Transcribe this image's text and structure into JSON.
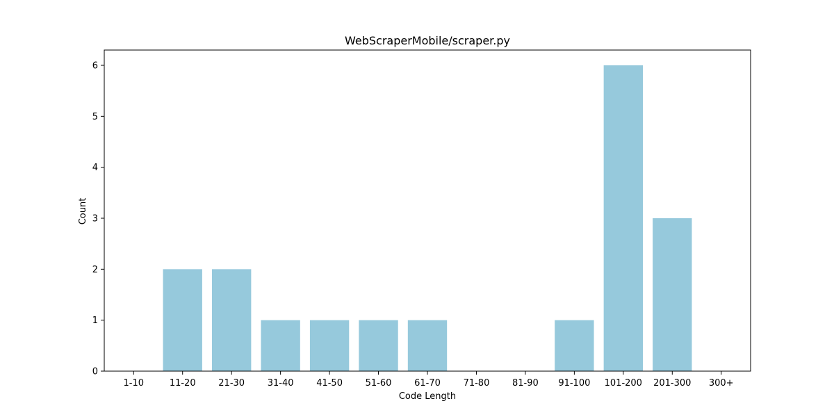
{
  "chart_data": {
    "type": "bar",
    "title": "WebScraperMobile/scraper.py",
    "xlabel": "Code Length",
    "ylabel": "Count",
    "categories": [
      "1-10",
      "11-20",
      "21-30",
      "31-40",
      "41-50",
      "51-60",
      "61-70",
      "71-80",
      "81-90",
      "91-100",
      "101-200",
      "201-300",
      "300+"
    ],
    "values": [
      0,
      2,
      2,
      1,
      1,
      1,
      1,
      0,
      0,
      1,
      6,
      3,
      0
    ],
    "yticks": [
      0,
      1,
      2,
      3,
      4,
      5,
      6
    ],
    "ylim": [
      0,
      6.3
    ],
    "bar_color": "#96c9dc",
    "grid": false,
    "legend": "none"
  }
}
